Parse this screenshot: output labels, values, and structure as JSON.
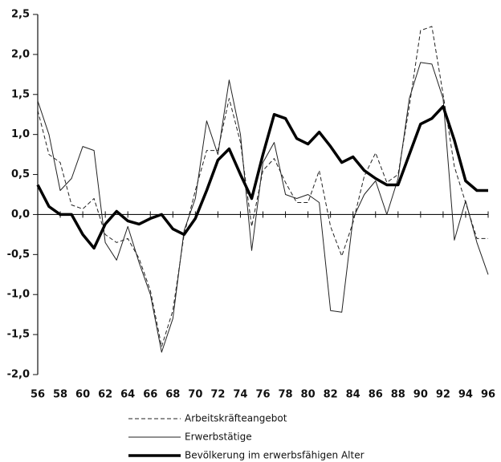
{
  "chart_data": {
    "type": "line",
    "x": [
      56,
      57,
      58,
      59,
      60,
      61,
      62,
      63,
      64,
      65,
      66,
      67,
      68,
      69,
      70,
      71,
      72,
      73,
      74,
      75,
      76,
      77,
      78,
      79,
      80,
      81,
      82,
      83,
      84,
      85,
      86,
      87,
      88,
      89,
      90,
      91,
      92,
      93,
      94,
      95,
      96
    ],
    "xlim": [
      56,
      96
    ],
    "xticks": [
      56,
      58,
      60,
      62,
      64,
      66,
      68,
      70,
      72,
      74,
      76,
      78,
      80,
      82,
      84,
      86,
      88,
      90,
      92,
      94,
      96
    ],
    "ylim": [
      -2.0,
      2.5
    ],
    "yticks": [
      {
        "value": 2.5,
        "label": "2,5"
      },
      {
        "value": 2.0,
        "label": "2,0"
      },
      {
        "value": 1.5,
        "label": "1,5"
      },
      {
        "value": 1.0,
        "label": "1,0"
      },
      {
        "value": 0.5,
        "label": "0,5"
      },
      {
        "value": 0.0,
        "label": "0,0"
      },
      {
        "value": -0.5,
        "label": "-0,5"
      },
      {
        "value": -1.0,
        "label": "-1,0"
      },
      {
        "value": -1.5,
        "label": "-1,5"
      },
      {
        "value": -2.0,
        "label": "-2,0"
      }
    ],
    "series": [
      {
        "name": "Arbeitskräfteangebot",
        "color": "#222222",
        "line_style": "dashed",
        "line_width": 1,
        "values": [
          1.3,
          0.75,
          0.65,
          0.12,
          0.07,
          0.2,
          -0.25,
          -0.35,
          -0.3,
          -0.55,
          -0.95,
          -1.65,
          -1.2,
          -0.25,
          0.3,
          0.8,
          0.8,
          1.45,
          0.9,
          -0.15,
          0.55,
          0.7,
          0.4,
          0.15,
          0.15,
          0.55,
          -0.15,
          -0.52,
          -0.1,
          0.48,
          0.77,
          0.4,
          0.5,
          1.35,
          2.3,
          2.35,
          1.5,
          0.6,
          0.15,
          -0.3,
          -0.3
        ]
      },
      {
        "name": "Erwerbstätige",
        "color": "#222222",
        "line_style": "solid",
        "line_width": 1,
        "values": [
          1.42,
          1.0,
          0.3,
          0.45,
          0.85,
          0.8,
          -0.35,
          -0.57,
          -0.15,
          -0.6,
          -1.0,
          -1.72,
          -1.3,
          -0.2,
          0.2,
          1.17,
          0.75,
          1.68,
          1.0,
          -0.45,
          0.65,
          0.9,
          0.25,
          0.2,
          0.25,
          0.15,
          -1.2,
          -1.22,
          -0.05,
          0.25,
          0.42,
          0.0,
          0.45,
          1.45,
          1.9,
          1.88,
          1.45,
          -0.32,
          0.17,
          -0.35,
          -0.75
        ]
      },
      {
        "name": "Bevölkerung im erwerbsfähigen Alter",
        "color": "#000000",
        "line_style": "solid",
        "line_width": 3.5,
        "values": [
          0.37,
          0.1,
          0.0,
          0.0,
          -0.25,
          -0.42,
          -0.12,
          0.04,
          -0.08,
          -0.12,
          -0.05,
          0.0,
          -0.18,
          -0.25,
          -0.05,
          0.3,
          0.68,
          0.82,
          0.5,
          0.2,
          0.75,
          1.25,
          1.2,
          0.95,
          0.88,
          1.03,
          0.85,
          0.65,
          0.72,
          0.55,
          0.45,
          0.37,
          0.37,
          0.75,
          1.13,
          1.2,
          1.35,
          0.93,
          0.42,
          0.3,
          0.3
        ]
      }
    ]
  }
}
